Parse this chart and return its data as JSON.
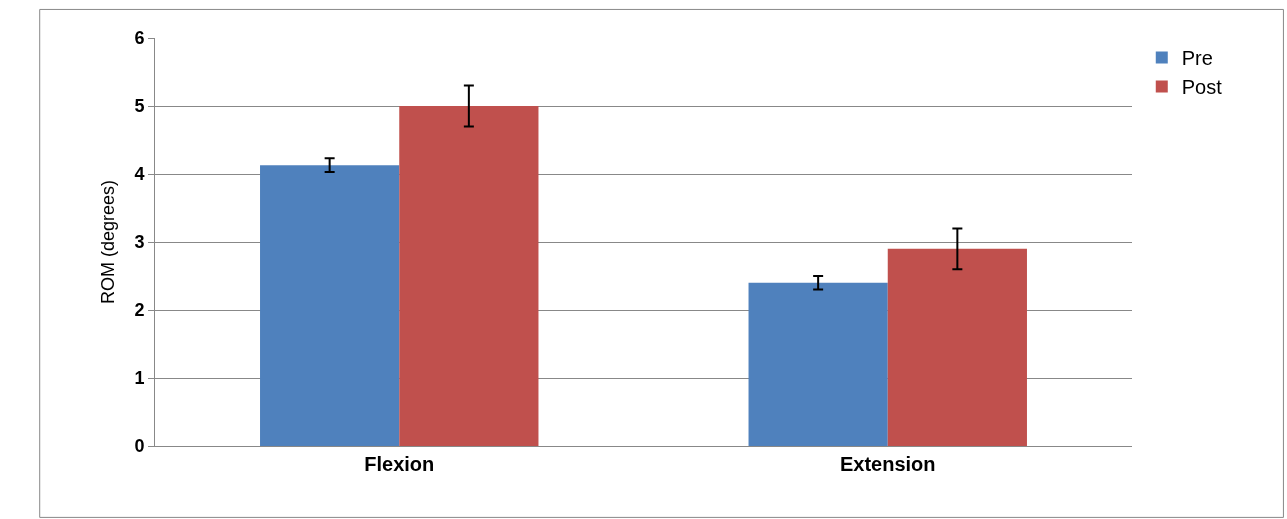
{
  "chart_data": {
    "type": "bar",
    "ylabel": "ROM (degrees)",
    "categories": [
      "Flexion",
      "Extension"
    ],
    "series": [
      {
        "name": "Pre",
        "color": "#4f81bd",
        "values": [
          4.13,
          2.4
        ],
        "errors": [
          0.1,
          0.1
        ]
      },
      {
        "name": "Post",
        "color": "#c0504d",
        "values": [
          5.0,
          2.9
        ],
        "errors": [
          0.3,
          0.3
        ]
      }
    ],
    "ylim": [
      0,
      6
    ],
    "yticks": [
      0,
      1,
      2,
      3,
      4,
      5,
      6
    ],
    "grid": "y",
    "legend": "top right"
  }
}
